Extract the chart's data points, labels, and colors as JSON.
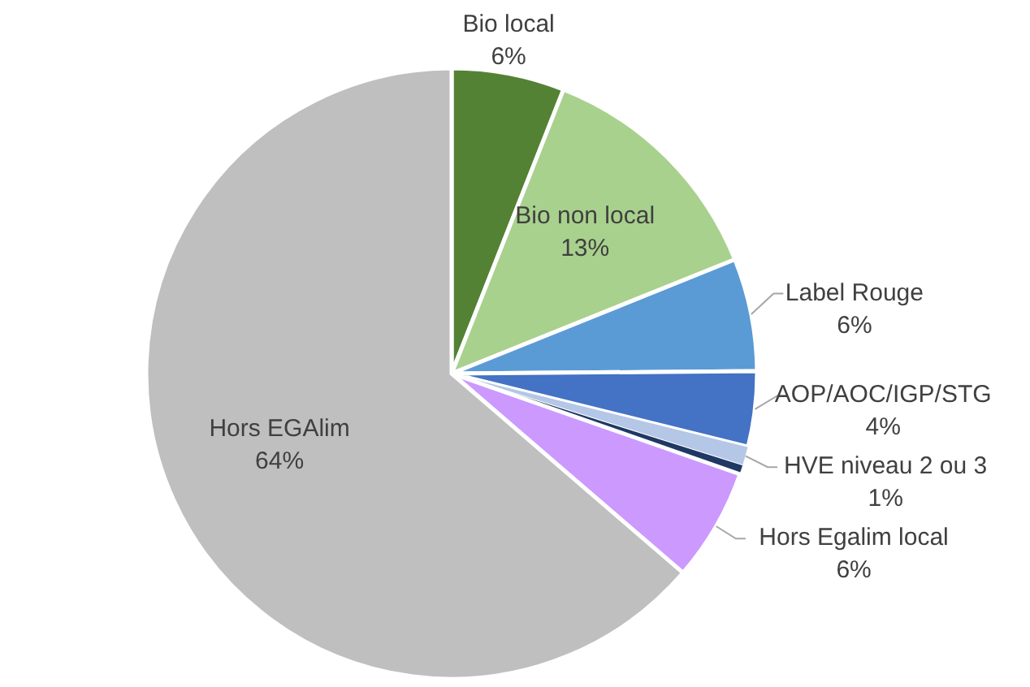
{
  "chart_data": {
    "type": "pie",
    "categories": [
      "Bio local",
      "Bio non local",
      "Label Rouge",
      "AOP/AOC/IGP/STG",
      "HVE niveau 2 ou 3",
      null,
      "Hors Egalim local",
      "Hors EGAlim"
    ],
    "values": [
      6,
      13,
      6,
      4,
      1,
      0.5,
      6,
      64
    ],
    "value_labels": [
      "6%",
      "13%",
      "6%",
      "4%",
      "1%",
      null,
      "6%",
      "64%"
    ],
    "colors": [
      "#548235",
      "#a9d18e",
      "#5b9bd5",
      "#4472c4",
      "#b4c7e7",
      "#1f3864",
      "#cc99ff",
      "#bfbfbf"
    ]
  }
}
